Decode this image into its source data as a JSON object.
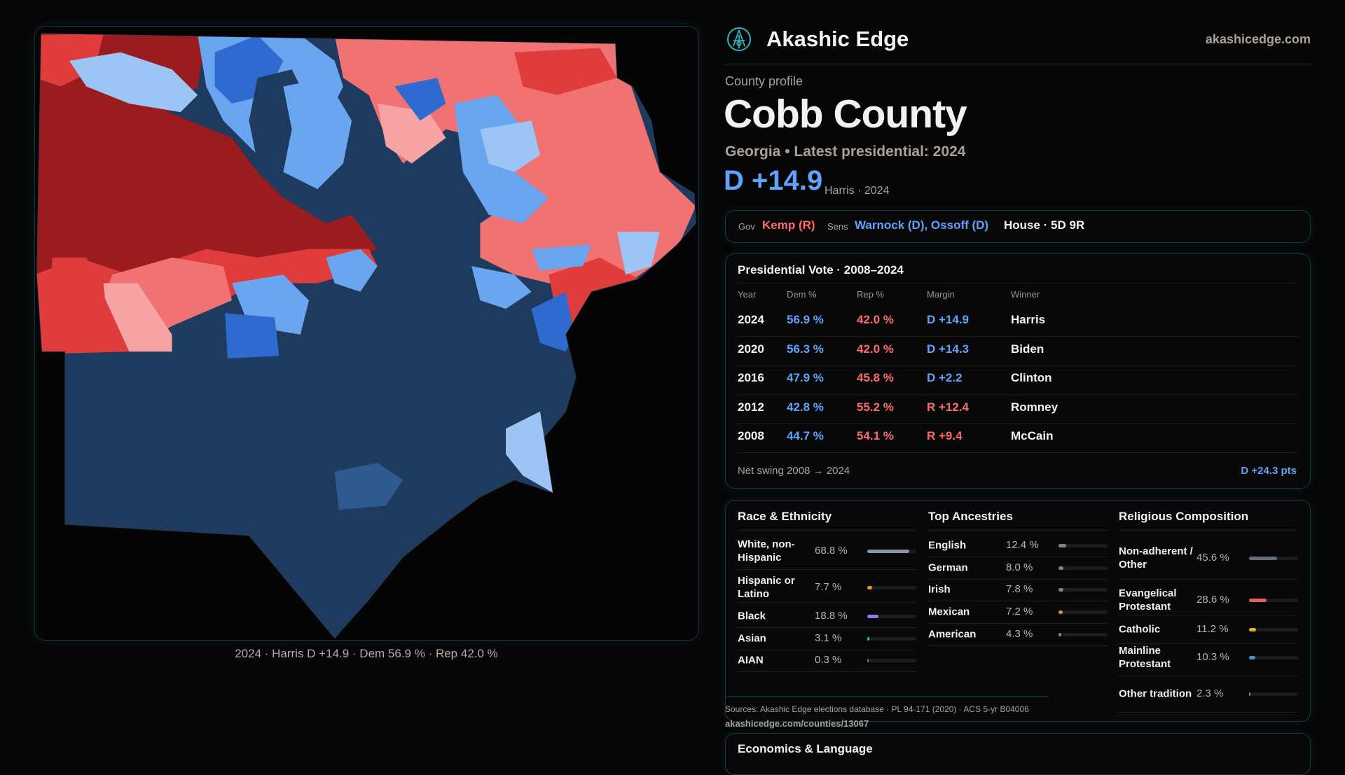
{
  "brand": {
    "name": "Akashic Edge",
    "site": "akashicedge.com",
    "logo_icon": "akashic-sigil-icon"
  },
  "profile": {
    "kicker": "County profile",
    "title": "Cobb County",
    "subtitle": "Georgia • Latest presidential: 2024",
    "margin": "D +14.9",
    "margin_note": "Harris · 2024"
  },
  "officials": {
    "gov_label": "Gov",
    "gov": "Kemp (R)",
    "sens_label": "Sens",
    "sens": "Warnock (D), Ossoff (D)",
    "house": "House · 5D 9R"
  },
  "presidential": {
    "title": "Presidential Vote · 2008–2024",
    "headers": [
      "Year",
      "Dem %",
      "Rep %",
      "Margin",
      "Winner"
    ],
    "rows": [
      {
        "year": "2024",
        "dem": "56.9 %",
        "rep": "42.0 %",
        "margin": "D +14.9",
        "winner": "Harris",
        "party": "D"
      },
      {
        "year": "2020",
        "dem": "56.3 %",
        "rep": "42.0 %",
        "margin": "D +14.3",
        "winner": "Biden",
        "party": "D"
      },
      {
        "year": "2016",
        "dem": "47.9 %",
        "rep": "45.8 %",
        "margin": "D +2.2",
        "winner": "Clinton",
        "party": "D"
      },
      {
        "year": "2012",
        "dem": "42.8 %",
        "rep": "55.2 %",
        "margin": "R +12.4",
        "winner": "Romney",
        "party": "R"
      },
      {
        "year": "2008",
        "dem": "44.7 %",
        "rep": "54.1 %",
        "margin": "R +9.4",
        "winner": "McCain",
        "party": "R"
      }
    ],
    "swing_label": "Net swing 2008 → 2024",
    "swing_value": "D +24.3 pts"
  },
  "demographics": {
    "race": {
      "title": "Race & Ethnicity",
      "items": [
        {
          "label": "White, non-Hispanic",
          "value": "68.8 %",
          "pct": 68.8,
          "color": "#8a93a6"
        },
        {
          "label": "Hispanic or Latino",
          "value": "7.7 %",
          "pct": 7.7,
          "color": "#e09a18"
        },
        {
          "label": "Black",
          "value": "18.8 %",
          "pct": 18.8,
          "color": "#8b7be6"
        },
        {
          "label": "Asian",
          "value": "3.1 %",
          "pct": 3.1,
          "color": "#22c28e"
        },
        {
          "label": "AIAN",
          "value": "0.3 %",
          "pct": 0.3,
          "color": "#777777"
        }
      ]
    },
    "ancestry": {
      "title": "Top Ancestries",
      "items": [
        {
          "label": "English",
          "value": "12.4 %",
          "pct": 12.4,
          "color": "#7c8596"
        },
        {
          "label": "German",
          "value": "8.0 %",
          "pct": 8.0,
          "color": "#7c8596"
        },
        {
          "label": "Irish",
          "value": "7.8 %",
          "pct": 7.8,
          "color": "#7c8596"
        },
        {
          "label": "Mexican",
          "value": "7.2 %",
          "pct": 7.2,
          "color": "#e09a18"
        },
        {
          "label": "American",
          "value": "4.3 %",
          "pct": 4.3,
          "color": "#7c8596"
        }
      ]
    },
    "religion": {
      "title": "Religious Composition",
      "items": [
        {
          "label": "Non-adherent / Other",
          "value": "45.6 %",
          "pct": 45.6,
          "color": "#666c78"
        },
        {
          "label": "Evangelical Protestant",
          "value": "28.6 %",
          "pct": 28.6,
          "color": "#e06262"
        },
        {
          "label": "Catholic",
          "value": "11.2 %",
          "pct": 11.2,
          "color": "#e0b020"
        },
        {
          "label": "Mainline Protestant",
          "value": "10.3 %",
          "pct": 10.3,
          "color": "#4a8fe0"
        },
        {
          "label": "Other tradition",
          "value": "2.3 %",
          "pct": 2.3,
          "color": "#888888"
        }
      ]
    }
  },
  "sources": "Sources: Akashic Edge elections database · PL 94-171 (2020) · ACS 5-yr B04006",
  "url": "akashicedge.com/counties/13067",
  "economics_title": "Economics & Language",
  "map": {
    "caption": "2024 · Harris D +14.9 · Dem 56.9 % · Rep 42.0 %",
    "colors": {
      "safe_d": "#1f3a5f",
      "likely_d": "#2f6ad0",
      "lean_d": "#6aa5f0",
      "tilt_d": "#9cc4f5",
      "safe_r": "#9b1c1f",
      "likely_r": "#e03c3c",
      "lean_r": "#f07272",
      "tilt_r": "#f5a3a3"
    }
  }
}
